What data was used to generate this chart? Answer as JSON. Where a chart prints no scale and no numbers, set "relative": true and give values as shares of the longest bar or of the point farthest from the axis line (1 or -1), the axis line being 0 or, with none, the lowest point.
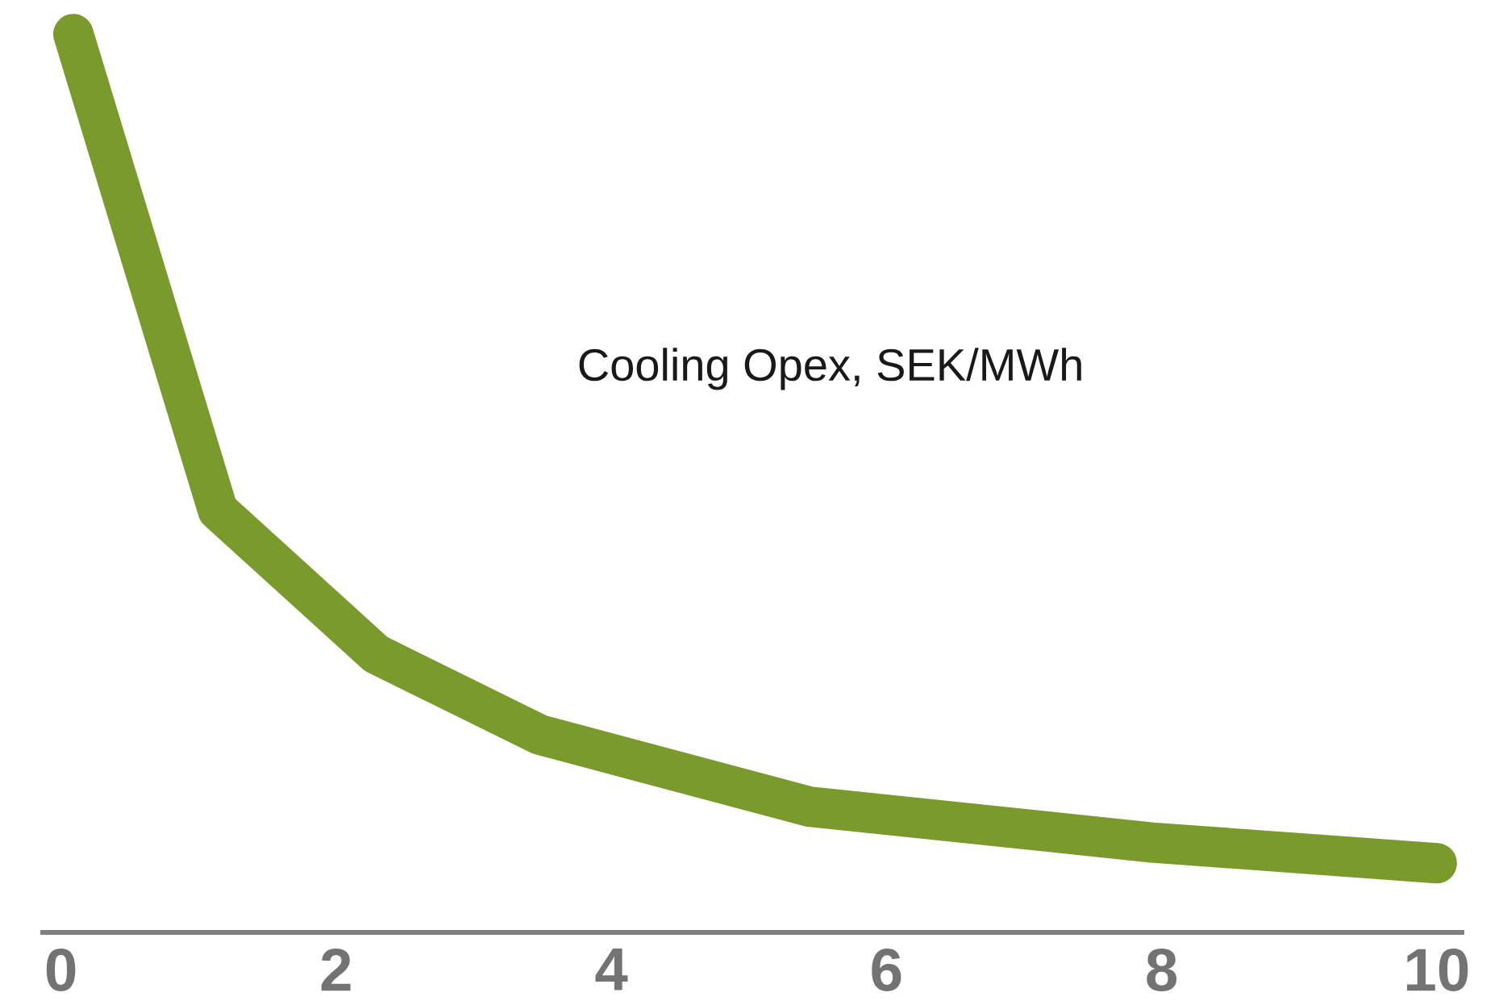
{
  "chart_data": {
    "type": "line",
    "title": "Cooling Opex, SEK/MWh",
    "relative": true,
    "x": [
      0.09,
      1.14,
      2.29,
      3.48,
      5.44,
      7.93,
      10.0
    ],
    "series": [
      {
        "color": "#7a9a2c",
        "values": [
          1.0,
          0.47,
          0.31,
          0.22,
          0.14,
          0.1,
          0.077
        ]
      }
    ],
    "xlim": [
      -0.15,
      10.2
    ],
    "xticks": [
      0,
      2,
      4,
      6,
      8,
      10
    ],
    "grid": false,
    "marker": "none",
    "line_style": "solid",
    "tick_labels": "x"
  }
}
